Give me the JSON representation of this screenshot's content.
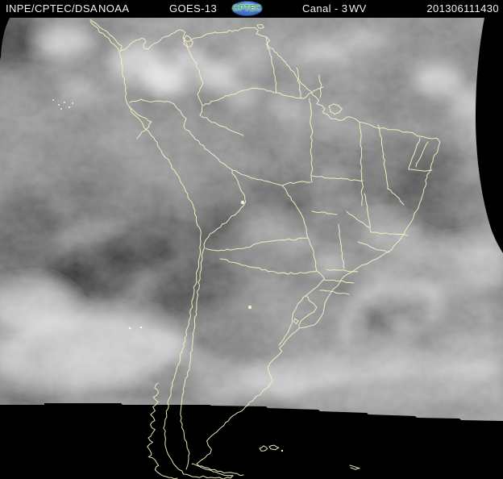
{
  "header": {
    "agency": "INPE/CPTEC/DSA",
    "noaa": "NOAA",
    "satellite": "GOES-13",
    "logo_text": "CPTEC",
    "channel": "Canal - 3",
    "band": "WV",
    "timestamp": "201306111430"
  },
  "colors": {
    "header_bg": "#000000",
    "header_text": "#f0f0f0",
    "space_black": "#000000",
    "map_border": "#f4f0c2",
    "logo_blue": "#2e5cae",
    "logo_green": "#3fae47"
  }
}
